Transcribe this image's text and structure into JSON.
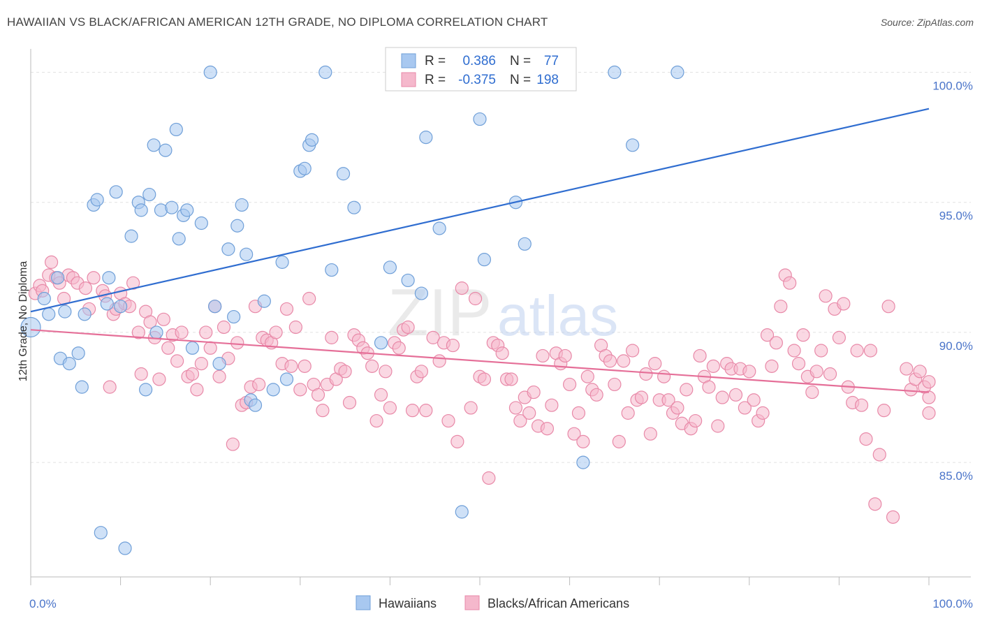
{
  "header": {
    "title": "HAWAIIAN VS BLACK/AFRICAN AMERICAN 12TH GRADE, NO DIPLOMA CORRELATION CHART",
    "source": "Source: ZipAtlas.com"
  },
  "watermark": {
    "zip": "ZIP",
    "atlas": "atlas"
  },
  "legend_top": [
    {
      "r_label": "R =",
      "r_value": "0.386",
      "n_label": "N =",
      "n_value": "77"
    },
    {
      "r_label": "R =",
      "r_value": "-0.375",
      "n_label": "N =",
      "n_value": "198"
    }
  ],
  "colors": {
    "blue_fill": "#a8c8f0",
    "blue_stroke": "#6f9fd8",
    "blue_line": "#2f6dd0",
    "pink_fill": "#f5b8cc",
    "pink_stroke": "#e889a8",
    "pink_line": "#e56f98",
    "grid": "#dddddd",
    "axis_label": "#4a74c9"
  },
  "chart_data": {
    "type": "scatter",
    "title": "HAWAIIAN VS BLACK/AFRICAN AMERICAN 12TH GRADE, NO DIPLOMA CORRELATION CHART",
    "xlabel": "",
    "ylabel": "12th Grade, No Diploma",
    "xlim": [
      0,
      100
    ],
    "ylim": [
      80.6,
      100.9
    ],
    "x_ticks": [
      "0.0%",
      "100.0%"
    ],
    "y_ticks": [
      {
        "value": 100,
        "label": "100.0%"
      },
      {
        "value": 95,
        "label": "95.0%"
      },
      {
        "value": 90,
        "label": "90.0%"
      },
      {
        "value": 85,
        "label": "85.0%"
      }
    ],
    "grid": true,
    "legend_position": "top-center",
    "series": [
      {
        "name": "Hawaiians",
        "color": "#a8c8f0",
        "trend": {
          "x": [
            0,
            100
          ],
          "y": [
            90.8,
            98.6
          ]
        },
        "points": [
          [
            0,
            90.2
          ],
          [
            1.5,
            91.3
          ],
          [
            2,
            90.7
          ],
          [
            3,
            92.1
          ],
          [
            3.3,
            89
          ],
          [
            3.8,
            90.8
          ],
          [
            4.3,
            88.8
          ],
          [
            5.3,
            89.2
          ],
          [
            5.7,
            87.9
          ],
          [
            6,
            90.7
          ],
          [
            7,
            94.9
          ],
          [
            7.4,
            95.1
          ],
          [
            7.8,
            82.3
          ],
          [
            8.5,
            91.1
          ],
          [
            8.7,
            92.1
          ],
          [
            9.5,
            95.4
          ],
          [
            10,
            91
          ],
          [
            10.5,
            81.7
          ],
          [
            11.2,
            93.7
          ],
          [
            12,
            95
          ],
          [
            12.3,
            94.7
          ],
          [
            12.8,
            87.8
          ],
          [
            13.2,
            95.3
          ],
          [
            13.7,
            97.2
          ],
          [
            14,
            90
          ],
          [
            14.5,
            94.7
          ],
          [
            15,
            97
          ],
          [
            15.7,
            94.8
          ],
          [
            16.2,
            97.8
          ],
          [
            16.5,
            93.6
          ],
          [
            17,
            94.5
          ],
          [
            17.4,
            94.7
          ],
          [
            18,
            89.4
          ],
          [
            19,
            94.2
          ],
          [
            20,
            100
          ],
          [
            20.5,
            91
          ],
          [
            21,
            88.8
          ],
          [
            22,
            93.2
          ],
          [
            22.6,
            90.6
          ],
          [
            23,
            94.1
          ],
          [
            23.5,
            94.9
          ],
          [
            24,
            93
          ],
          [
            24.5,
            87.4
          ],
          [
            25,
            87.2
          ],
          [
            26,
            91.2
          ],
          [
            27,
            87.8
          ],
          [
            28,
            92.7
          ],
          [
            28.5,
            88.2
          ],
          [
            30,
            96.2
          ],
          [
            30.5,
            96.3
          ],
          [
            31,
            97.2
          ],
          [
            31.3,
            97.4
          ],
          [
            32.8,
            100
          ],
          [
            33.5,
            92.4
          ],
          [
            34.8,
            96.1
          ],
          [
            36,
            94.8
          ],
          [
            39,
            89.6
          ],
          [
            40,
            92.5
          ],
          [
            42,
            92
          ],
          [
            43.5,
            91.5
          ],
          [
            44,
            97.5
          ],
          [
            45.5,
            94
          ],
          [
            48,
            83.1
          ],
          [
            50,
            98.2
          ],
          [
            50.5,
            92.8
          ],
          [
            54,
            95
          ],
          [
            55,
            93.4
          ],
          [
            61.5,
            85
          ],
          [
            65,
            100
          ],
          [
            67,
            97.2
          ],
          [
            72,
            100
          ]
        ]
      },
      {
        "name": "Blacks/African Americans",
        "color": "#f5b8cc",
        "trend": {
          "x": [
            0,
            100
          ],
          "y": [
            90.1,
            87.7
          ]
        },
        "points": [
          [
            0.5,
            91.5
          ],
          [
            1,
            91.8
          ],
          [
            1.3,
            91.6
          ],
          [
            2,
            92.2
          ],
          [
            2.3,
            92.7
          ],
          [
            2.8,
            92.1
          ],
          [
            3.2,
            91.9
          ],
          [
            3.7,
            91.3
          ],
          [
            4.2,
            92.2
          ],
          [
            4.7,
            92.1
          ],
          [
            5.2,
            91.9
          ],
          [
            6.1,
            91.7
          ],
          [
            6.5,
            90.9
          ],
          [
            7,
            92.1
          ],
          [
            8,
            91.6
          ],
          [
            8.3,
            91.4
          ],
          [
            8.8,
            87.9
          ],
          [
            9.2,
            90.7
          ],
          [
            9.5,
            90.9
          ],
          [
            10,
            91.5
          ],
          [
            10.5,
            91.1
          ],
          [
            11,
            91
          ],
          [
            11.4,
            91.9
          ],
          [
            12,
            90
          ],
          [
            12.3,
            88.4
          ],
          [
            12.8,
            90.8
          ],
          [
            13.3,
            90.4
          ],
          [
            13.8,
            89.8
          ],
          [
            14.3,
            88.2
          ],
          [
            14.8,
            90.5
          ],
          [
            15.3,
            89.4
          ],
          [
            15.8,
            89.9
          ],
          [
            16.3,
            88.9
          ],
          [
            16.8,
            90
          ],
          [
            17.5,
            88.3
          ],
          [
            18,
            88.4
          ],
          [
            18.5,
            87.8
          ],
          [
            19,
            88.8
          ],
          [
            19.5,
            90
          ],
          [
            20,
            89.4
          ],
          [
            20.5,
            91
          ],
          [
            21,
            88.3
          ],
          [
            21.5,
            90.2
          ],
          [
            22,
            89
          ],
          [
            22.5,
            85.7
          ],
          [
            23,
            89.6
          ],
          [
            23.5,
            87.2
          ],
          [
            24,
            87.3
          ],
          [
            24.5,
            87.9
          ],
          [
            25,
            91
          ],
          [
            25.4,
            88
          ],
          [
            25.8,
            89.8
          ],
          [
            26.3,
            89.7
          ],
          [
            26.8,
            89.6
          ],
          [
            27.3,
            90
          ],
          [
            28,
            88.8
          ],
          [
            28.5,
            90.9
          ],
          [
            29,
            88.7
          ],
          [
            29.5,
            90.2
          ],
          [
            30,
            87.8
          ],
          [
            30.5,
            88.7
          ],
          [
            31,
            91.3
          ],
          [
            31.5,
            88
          ],
          [
            32,
            87.6
          ],
          [
            32.5,
            87
          ],
          [
            33,
            88
          ],
          [
            33.5,
            89.8
          ],
          [
            34,
            88.2
          ],
          [
            34.5,
            88.6
          ],
          [
            35,
            88.5
          ],
          [
            35.5,
            87.3
          ],
          [
            36,
            89.9
          ],
          [
            36.5,
            89.7
          ],
          [
            37,
            89.4
          ],
          [
            37.5,
            89.2
          ],
          [
            38,
            88.7
          ],
          [
            38.5,
            86.6
          ],
          [
            39,
            87.6
          ],
          [
            39.5,
            88.5
          ],
          [
            40,
            87.1
          ],
          [
            40.5,
            89.6
          ],
          [
            41,
            89.4
          ],
          [
            41.5,
            90.1
          ],
          [
            42,
            90.2
          ],
          [
            42.5,
            87
          ],
          [
            43,
            88.3
          ],
          [
            43.5,
            88.5
          ],
          [
            44,
            87
          ],
          [
            44.8,
            89.8
          ],
          [
            45.5,
            88.9
          ],
          [
            46,
            89.6
          ],
          [
            46.5,
            86.6
          ],
          [
            47,
            89.5
          ],
          [
            47.5,
            85.8
          ],
          [
            48,
            91.7
          ],
          [
            49,
            87.1
          ],
          [
            49.5,
            91.3
          ],
          [
            50,
            88.3
          ],
          [
            50.5,
            88.2
          ],
          [
            51,
            84.4
          ],
          [
            51.5,
            89.6
          ],
          [
            52,
            89.5
          ],
          [
            52.5,
            89.2
          ],
          [
            53,
            88.2
          ],
          [
            53.5,
            88.2
          ],
          [
            54,
            87.1
          ],
          [
            54.5,
            86.6
          ],
          [
            55,
            87.5
          ],
          [
            55.5,
            86.9
          ],
          [
            56,
            87.7
          ],
          [
            56.5,
            86.4
          ],
          [
            57,
            89.1
          ],
          [
            57.5,
            86.3
          ],
          [
            58,
            87.2
          ],
          [
            58.5,
            89.2
          ],
          [
            59,
            88.8
          ],
          [
            59.5,
            89.1
          ],
          [
            60,
            88
          ],
          [
            60.5,
            86.1
          ],
          [
            61,
            86.9
          ],
          [
            61.5,
            85.8
          ],
          [
            62,
            88.3
          ],
          [
            62.5,
            87.8
          ],
          [
            63,
            87.6
          ],
          [
            63.5,
            89.5
          ],
          [
            64,
            89.1
          ],
          [
            64.5,
            88.9
          ],
          [
            65,
            88
          ],
          [
            65.5,
            85.8
          ],
          [
            66,
            88.9
          ],
          [
            66.5,
            86.9
          ],
          [
            67,
            89.3
          ],
          [
            67.5,
            87.4
          ],
          [
            68,
            87.5
          ],
          [
            68.5,
            88.4
          ],
          [
            69,
            86.1
          ],
          [
            69.5,
            88.8
          ],
          [
            70,
            87.4
          ],
          [
            70.5,
            88.3
          ],
          [
            71,
            87.4
          ],
          [
            71.5,
            86.9
          ],
          [
            72,
            87.1
          ],
          [
            72.5,
            86.5
          ],
          [
            73,
            87.8
          ],
          [
            73.5,
            86.3
          ],
          [
            74,
            86.6
          ],
          [
            74.5,
            89.1
          ],
          [
            75,
            88.3
          ],
          [
            75.5,
            87.9
          ],
          [
            76,
            88.7
          ],
          [
            76.5,
            86.4
          ],
          [
            77,
            87.5
          ],
          [
            77.5,
            88.8
          ],
          [
            78,
            88.6
          ],
          [
            78.5,
            87.6
          ],
          [
            79,
            88.6
          ],
          [
            79.5,
            87.1
          ],
          [
            80,
            88.5
          ],
          [
            80.5,
            87.4
          ],
          [
            81,
            86.6
          ],
          [
            81.5,
            86.9
          ],
          [
            82,
            89.9
          ],
          [
            82.5,
            88.7
          ],
          [
            83,
            89.6
          ],
          [
            83.5,
            91
          ],
          [
            84,
            92.2
          ],
          [
            84.5,
            91.9
          ],
          [
            85,
            89.3
          ],
          [
            85.5,
            88.8
          ],
          [
            86,
            89.9
          ],
          [
            86.5,
            88.3
          ],
          [
            87,
            87.7
          ],
          [
            87.5,
            88.5
          ],
          [
            88,
            89.3
          ],
          [
            88.5,
            91.4
          ],
          [
            89,
            88.4
          ],
          [
            89.5,
            90.9
          ],
          [
            90,
            89.8
          ],
          [
            90.5,
            91.1
          ],
          [
            91,
            87.9
          ],
          [
            91.5,
            87.3
          ],
          [
            92,
            89.3
          ],
          [
            92.5,
            87.2
          ],
          [
            93,
            85.9
          ],
          [
            93.5,
            89.3
          ],
          [
            94,
            83.4
          ],
          [
            94.5,
            85.3
          ],
          [
            95,
            87
          ],
          [
            95.5,
            91
          ],
          [
            96,
            82.9
          ],
          [
            97.5,
            88.6
          ],
          [
            98,
            87.8
          ],
          [
            98.5,
            88.2
          ],
          [
            99,
            88.5
          ],
          [
            99.5,
            87.9
          ],
          [
            100,
            88.1
          ],
          [
            100,
            87.5
          ],
          [
            100,
            86.9
          ]
        ]
      }
    ]
  },
  "bottom_legend": [
    {
      "label": "Hawaiians"
    },
    {
      "label": "Blacks/African Americans"
    }
  ]
}
